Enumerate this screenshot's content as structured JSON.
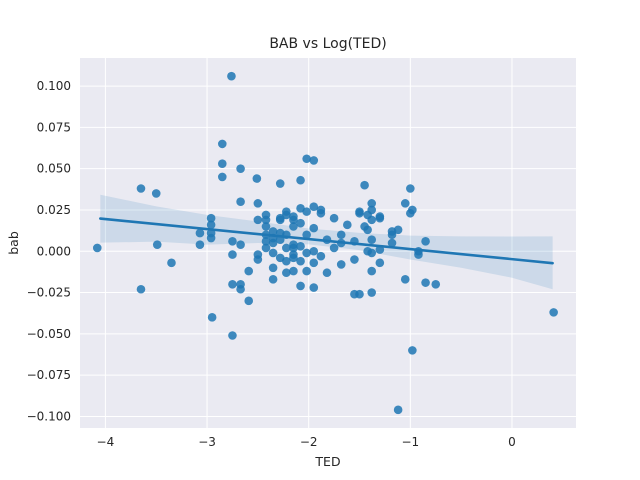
{
  "chart_data": {
    "type": "scatter",
    "title": "BAB vs Log(TED)",
    "xlabel": "TED",
    "ylabel": "bab",
    "xlim": [
      -4.25,
      0.63
    ],
    "ylim": [
      -0.107,
      0.117
    ],
    "xticks": [
      -4,
      -3,
      -2,
      -1,
      0
    ],
    "yticks": [
      -0.1,
      -0.075,
      -0.05,
      -0.025,
      0.0,
      0.025,
      0.05,
      0.075,
      0.1
    ],
    "xtick_labels": [
      "−4",
      "−3",
      "−2",
      "−1",
      "0"
    ],
    "ytick_labels": [
      "−0.100",
      "−0.075",
      "−0.050",
      "−0.025",
      "0.000",
      "0.025",
      "0.050",
      "0.075",
      "0.100"
    ],
    "grid": true,
    "colors": {
      "background": "#eaeaf2",
      "grid": "#ffffff",
      "points": "#1f77b4",
      "band": "#1f77b4"
    },
    "regression": {
      "x": [
        -4.05,
        0.4
      ],
      "y": [
        0.0198,
        -0.0072
      ]
    },
    "confidence_band": {
      "x": [
        -4.05,
        -3.5,
        -3.0,
        -2.5,
        -2.0,
        -1.5,
        -1.0,
        -0.5,
        0.0,
        0.4
      ],
      "upper": [
        0.0342,
        0.0272,
        0.022,
        0.018,
        0.0138,
        0.0111,
        0.0095,
        0.009,
        0.0089,
        0.009
      ],
      "lower": [
        0.0052,
        0.0058,
        0.004,
        0.005,
        0.0042,
        0.0007,
        -0.005,
        -0.01,
        -0.016,
        -0.023
      ]
    },
    "series": [
      {
        "points": [
          [
            -4.08,
            0.002
          ],
          [
            -3.65,
            0.038
          ],
          [
            -3.65,
            -0.023
          ],
          [
            -3.5,
            0.035
          ],
          [
            -3.49,
            0.004
          ],
          [
            -3.35,
            -0.007
          ],
          [
            -3.07,
            0.011
          ],
          [
            -3.07,
            0.004
          ],
          [
            -2.96,
            0.02
          ],
          [
            -2.96,
            0.016
          ],
          [
            -2.96,
            0.011
          ],
          [
            -2.96,
            0.008
          ],
          [
            -2.95,
            -0.04
          ],
          [
            -2.85,
            0.065
          ],
          [
            -2.85,
            0.053
          ],
          [
            -2.85,
            0.045
          ],
          [
            -2.76,
            0.106
          ],
          [
            -2.75,
            0.006
          ],
          [
            -2.75,
            -0.002
          ],
          [
            -2.75,
            -0.02
          ],
          [
            -2.75,
            -0.051
          ],
          [
            -2.67,
            0.05
          ],
          [
            -2.67,
            0.03
          ],
          [
            -2.67,
            0.004
          ],
          [
            -2.67,
            -0.02
          ],
          [
            -2.67,
            -0.023
          ],
          [
            -2.59,
            -0.012
          ],
          [
            -2.59,
            -0.03
          ],
          [
            -2.51,
            0.044
          ],
          [
            -2.5,
            0.029
          ],
          [
            -2.5,
            0.019
          ],
          [
            -2.5,
            -0.002
          ],
          [
            -2.5,
            -0.005
          ],
          [
            -2.42,
            0.022
          ],
          [
            -2.42,
            0.019
          ],
          [
            -2.42,
            0.015
          ],
          [
            -2.42,
            0.01
          ],
          [
            -2.42,
            0.006
          ],
          [
            -2.42,
            0.002
          ],
          [
            -2.35,
            0.012
          ],
          [
            -2.35,
            0.008
          ],
          [
            -2.35,
            0.005
          ],
          [
            -2.35,
            -0.001
          ],
          [
            -2.35,
            -0.01
          ],
          [
            -2.35,
            -0.017
          ],
          [
            -2.28,
            0.041
          ],
          [
            -2.28,
            0.02
          ],
          [
            -2.28,
            0.019
          ],
          [
            -2.28,
            0.011
          ],
          [
            -2.28,
            0.007
          ],
          [
            -2.28,
            -0.004
          ],
          [
            -2.22,
            0.024
          ],
          [
            -2.22,
            0.022
          ],
          [
            -2.22,
            0.01
          ],
          [
            -2.22,
            0.002
          ],
          [
            -2.22,
            -0.006
          ],
          [
            -2.22,
            -0.013
          ],
          [
            -2.15,
            0.021
          ],
          [
            -2.15,
            0.019
          ],
          [
            -2.15,
            0.015
          ],
          [
            -2.15,
            0.004
          ],
          [
            -2.15,
            0.002
          ],
          [
            -2.15,
            -0.002
          ],
          [
            -2.15,
            -0.004
          ],
          [
            -2.15,
            -0.012
          ],
          [
            -2.08,
            0.043
          ],
          [
            -2.08,
            0.026
          ],
          [
            -2.08,
            0.017
          ],
          [
            -2.08,
            0.003
          ],
          [
            -2.08,
            -0.006
          ],
          [
            -2.08,
            -0.021
          ],
          [
            -2.02,
            0.056
          ],
          [
            -2.02,
            0.024
          ],
          [
            -2.02,
            0.01
          ],
          [
            -2.02,
            -0.001
          ],
          [
            -2.02,
            -0.012
          ],
          [
            -1.95,
            0.055
          ],
          [
            -1.95,
            0.027
          ],
          [
            -1.95,
            0.014
          ],
          [
            -1.95,
            0.0
          ],
          [
            -1.95,
            -0.007
          ],
          [
            -1.95,
            -0.022
          ],
          [
            -1.88,
            0.025
          ],
          [
            -1.88,
            0.023
          ],
          [
            -1.88,
            -0.003
          ],
          [
            -1.82,
            0.007
          ],
          [
            -1.82,
            -0.013
          ],
          [
            -1.75,
            0.02
          ],
          [
            -1.75,
            0.002
          ],
          [
            -1.68,
            0.01
          ],
          [
            -1.68,
            0.005
          ],
          [
            -1.68,
            -0.008
          ],
          [
            -1.62,
            0.016
          ],
          [
            -1.55,
            0.006
          ],
          [
            -1.55,
            -0.005
          ],
          [
            -1.55,
            -0.026
          ],
          [
            -1.5,
            0.024
          ],
          [
            -1.5,
            0.023
          ],
          [
            -1.5,
            -0.026
          ],
          [
            -1.45,
            0.04
          ],
          [
            -1.45,
            0.015
          ],
          [
            -1.42,
            0.022
          ],
          [
            -1.42,
            0.013
          ],
          [
            -1.42,
            0.0
          ],
          [
            -1.38,
            0.029
          ],
          [
            -1.38,
            0.025
          ],
          [
            -1.38,
            0.019
          ],
          [
            -1.38,
            0.007
          ],
          [
            -1.38,
            -0.001
          ],
          [
            -1.38,
            -0.012
          ],
          [
            -1.38,
            -0.025
          ],
          [
            -1.3,
            0.021
          ],
          [
            -1.3,
            0.02
          ],
          [
            -1.3,
            0.001
          ],
          [
            -1.3,
            -0.007
          ],
          [
            -1.18,
            0.012
          ],
          [
            -1.18,
            0.01
          ],
          [
            -1.18,
            0.005
          ],
          [
            -1.12,
            0.013
          ],
          [
            -1.12,
            -0.096
          ],
          [
            -1.05,
            0.029
          ],
          [
            -1.05,
            -0.017
          ],
          [
            -1.0,
            0.038
          ],
          [
            -1.0,
            0.023
          ],
          [
            -0.98,
            0.025
          ],
          [
            -0.98,
            -0.06
          ],
          [
            -0.92,
            0.0
          ],
          [
            -0.92,
            -0.002
          ],
          [
            -0.85,
            0.006
          ],
          [
            -0.85,
            -0.019
          ],
          [
            -0.75,
            -0.02
          ],
          [
            0.41,
            -0.037
          ]
        ]
      }
    ]
  }
}
